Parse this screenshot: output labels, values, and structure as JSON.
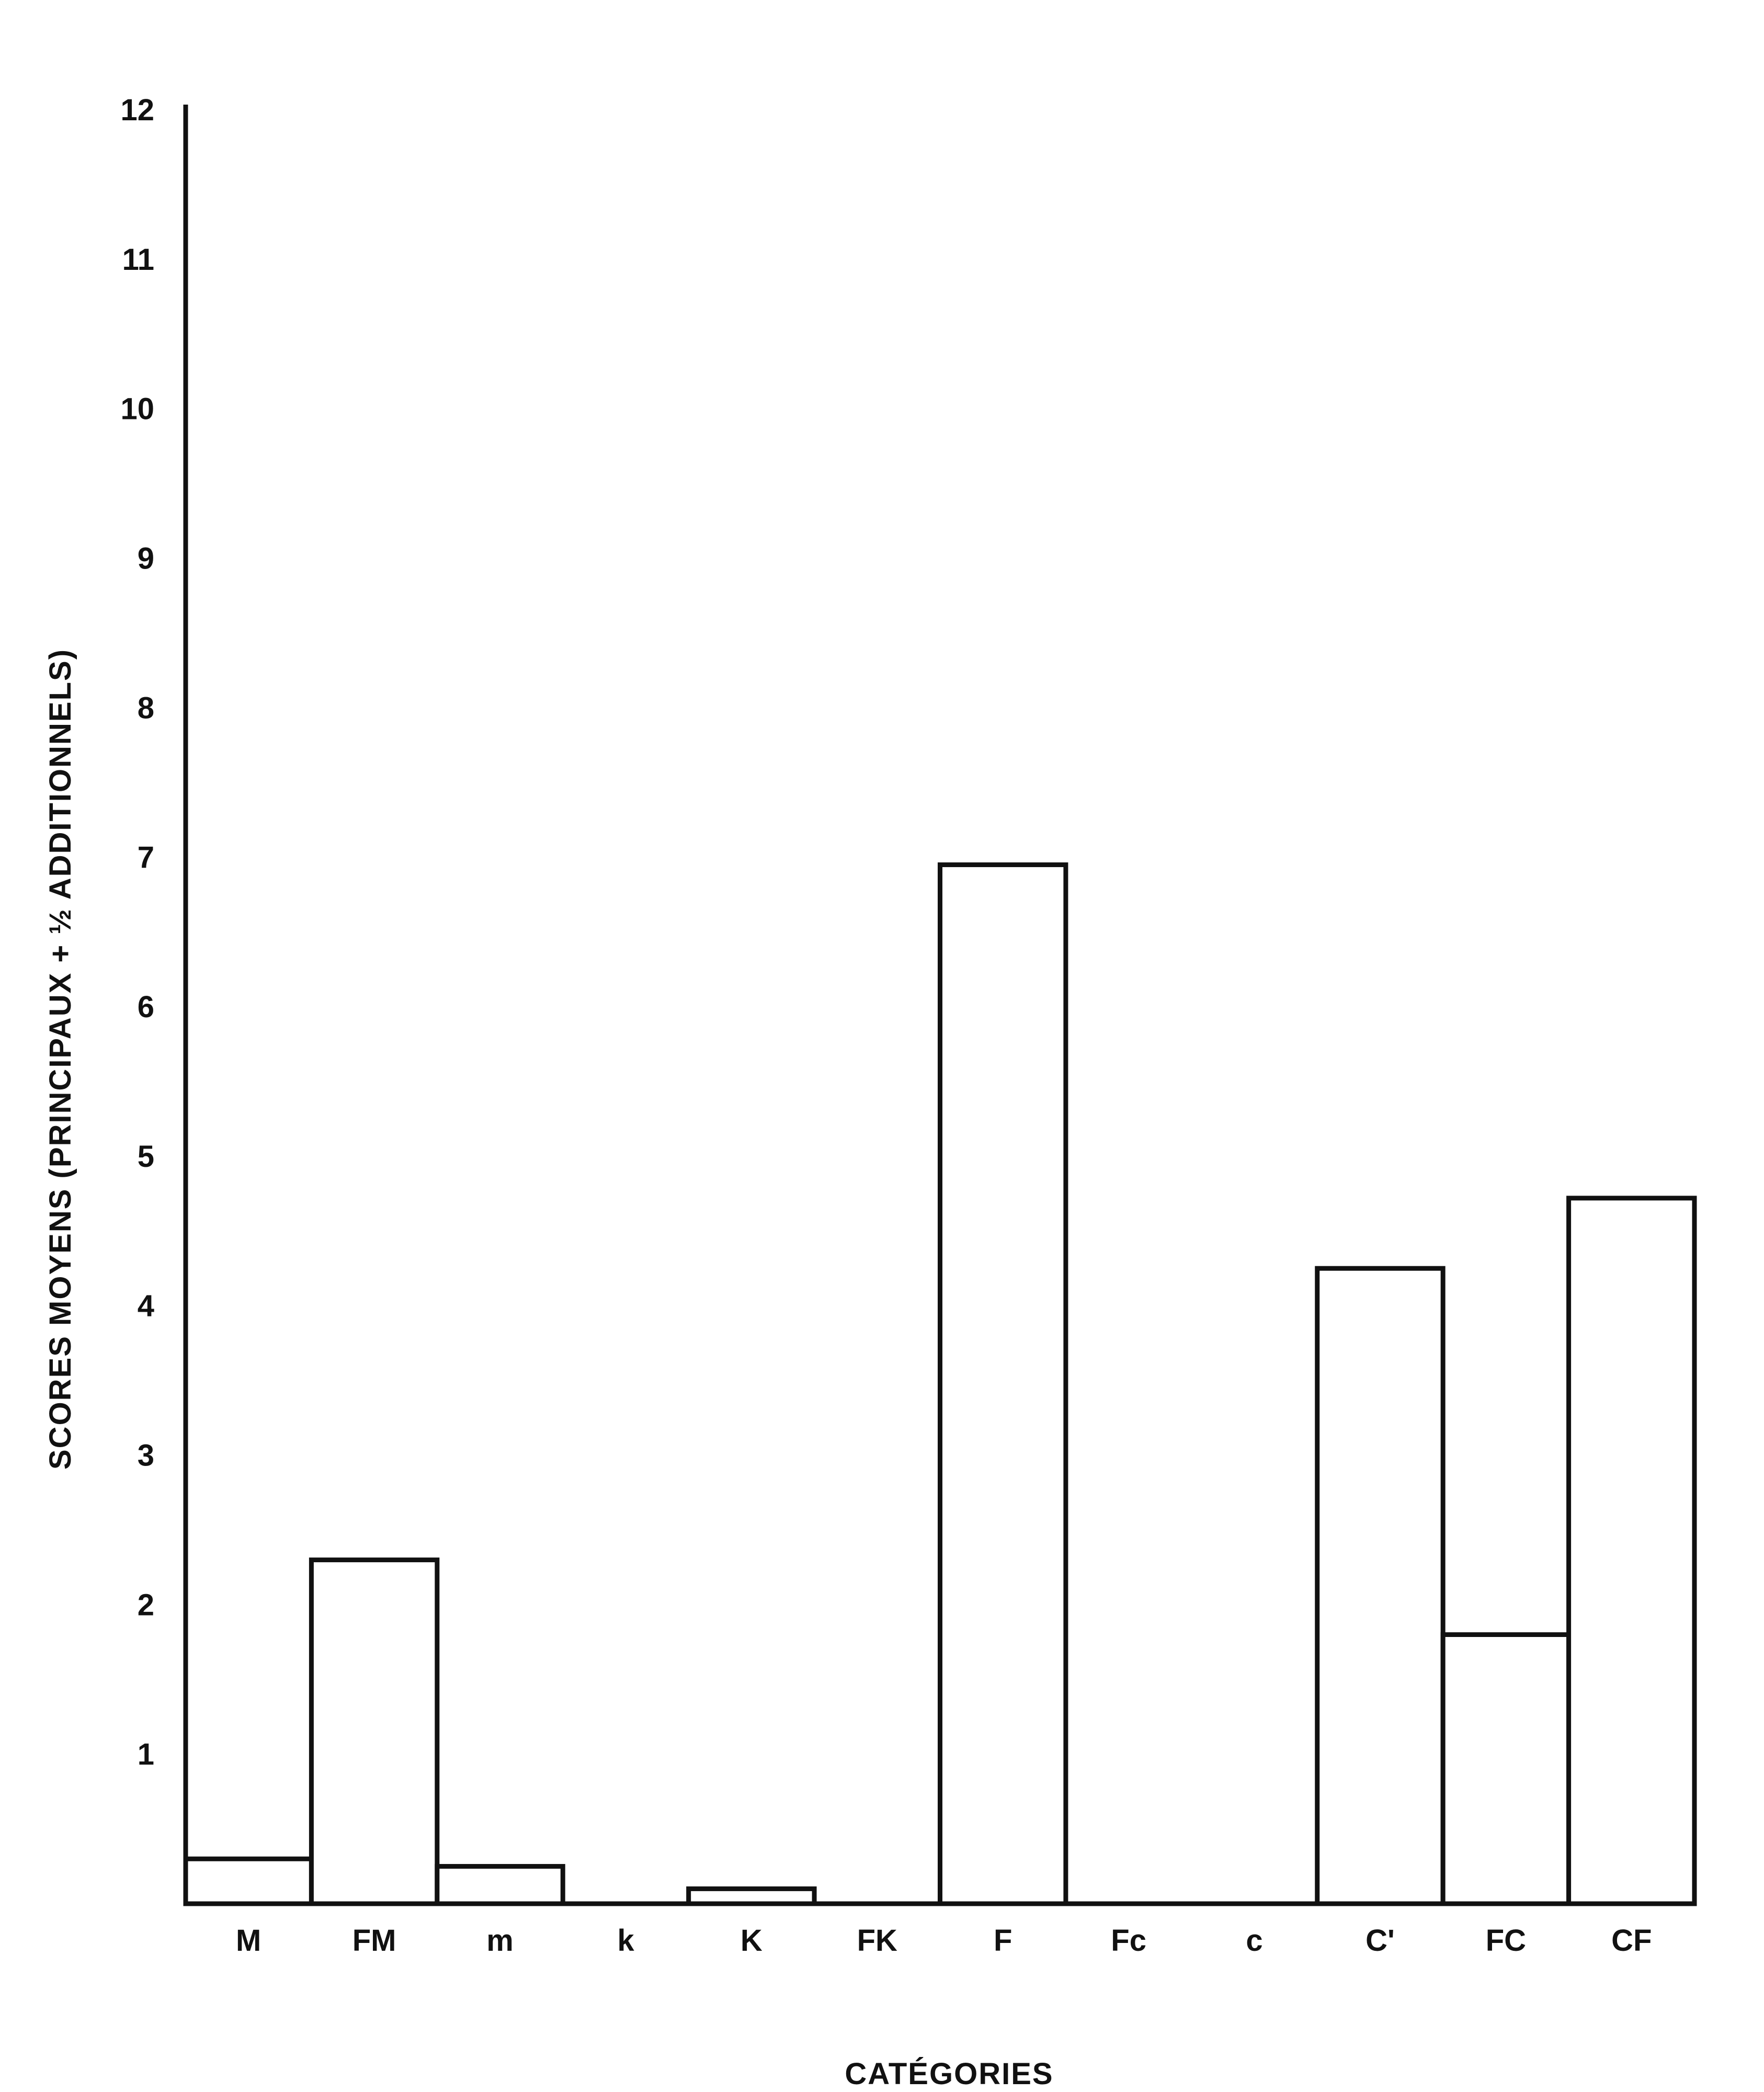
{
  "chart_data": {
    "type": "bar",
    "categories": [
      "M",
      "FM",
      "m",
      "k",
      "K",
      "FK",
      "F",
      "Fc",
      "c",
      "C'",
      "FC",
      "CF"
    ],
    "values": [
      0.3,
      2.3,
      0.25,
      0,
      0.1,
      0,
      6.95,
      0,
      0,
      4.25,
      1.8,
      4.72
    ],
    "title": "",
    "xlabel": "CATÉGORIES",
    "ylabel": "SCORES MOYENS (PRINCIPAUX + ½ ADDITIONNELS)",
    "ylim": [
      0,
      12
    ],
    "yticks": [
      1,
      2,
      3,
      4,
      5,
      6,
      7,
      8,
      9,
      10,
      11,
      12
    ],
    "grid": false,
    "colors": {
      "bar_fill": "#ffffff",
      "bar_stroke": "#111111",
      "axis": "#111111"
    }
  }
}
